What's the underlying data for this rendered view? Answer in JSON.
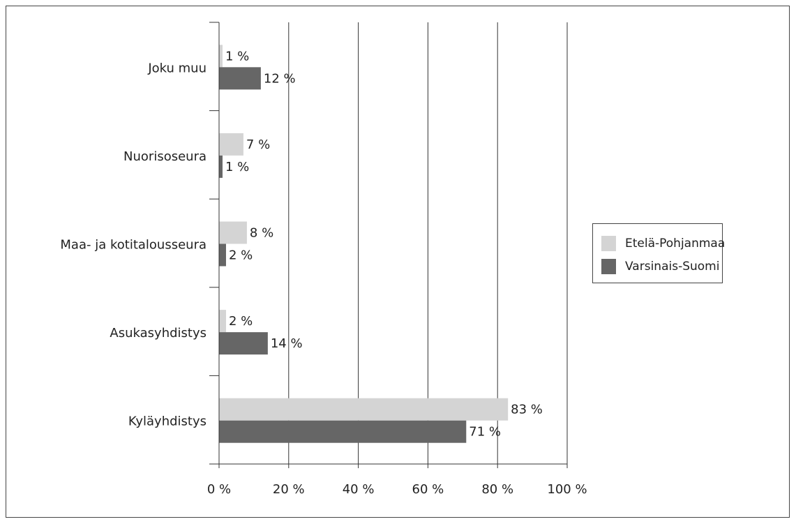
{
  "chart_data": {
    "type": "bar",
    "orientation": "horizontal",
    "categories": [
      "Joku muu",
      "Nuorisoseura",
      "Maa- ja kotitalousseura",
      "Asukasyhdistys",
      "Kyläyhdistys"
    ],
    "series": [
      {
        "name": "Etelä-Pohjanmaa",
        "color": "#d4d4d4",
        "values": [
          1,
          7,
          8,
          2,
          83
        ],
        "labels": [
          "1 %",
          "7 %",
          "8 %",
          "2 %",
          "83 %"
        ]
      },
      {
        "name": "Varsinais-Suomi",
        "color": "#666666",
        "values": [
          12,
          1,
          2,
          14,
          71
        ],
        "labels": [
          "12 %",
          "1 %",
          "2 %",
          "14 %",
          "71 %"
        ]
      }
    ],
    "xlim": [
      0,
      100
    ],
    "xticks": [
      0,
      20,
      40,
      60,
      80,
      100
    ],
    "xtick_labels": [
      "0 %",
      "20 %",
      "40 %",
      "60 %",
      "80 %",
      "100 %"
    ],
    "grid": "vertical",
    "legend_position": "right",
    "title": "",
    "xlabel": "",
    "ylabel": ""
  },
  "legend": {
    "items": [
      {
        "label": "Etelä-Pohjanmaa",
        "color": "#d4d4d4"
      },
      {
        "label": "Varsinais-Suomi",
        "color": "#666666"
      }
    ]
  }
}
